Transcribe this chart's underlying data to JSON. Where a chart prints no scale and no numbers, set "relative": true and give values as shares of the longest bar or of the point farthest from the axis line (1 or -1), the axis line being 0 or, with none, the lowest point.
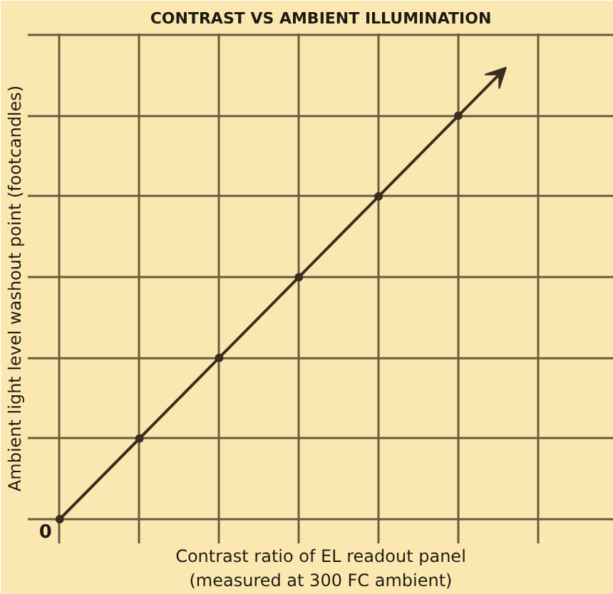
{
  "chart_data": {
    "type": "line",
    "title": "CONTRAST VS AMBIENT ILLUMINATION",
    "xlabel": "Contrast ratio of EL readout panel\n(measured at 300 FC ambient)",
    "ylabel": "Ambient light level washout point (footcandles)",
    "categories": [
      null,
      null,
      null,
      null,
      null,
      null,
      null
    ],
    "values": [
      0,
      0.2,
      0.4,
      0.6,
      0.8,
      1.0,
      null
    ],
    "color": "#3a2e20",
    "relative": true,
    "grid": true,
    "marker": "circle",
    "line_style": "solid",
    "annotations": [
      "0"
    ]
  }
}
